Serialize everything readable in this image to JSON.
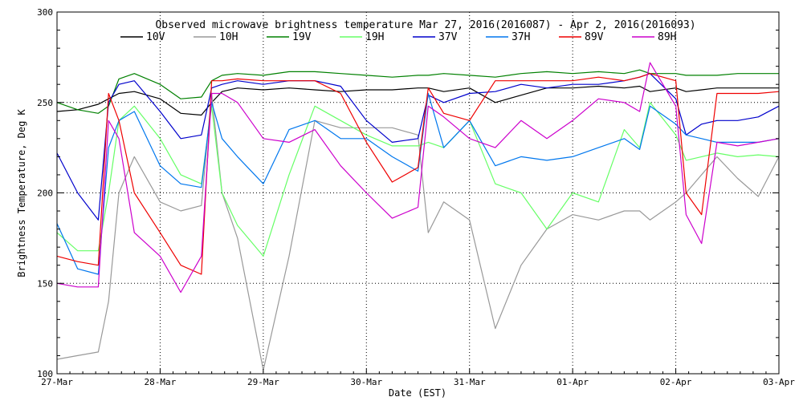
{
  "chart_data": {
    "type": "line",
    "title": "Observed microwave brightness temperature Mar 27, 2016(2016087) - Apr  2, 2016(2016093)",
    "xlabel": "Date (EST)",
    "ylabel": "Brightness Temperature, Deg K",
    "xlim": [
      0,
      7
    ],
    "ylim": [
      100,
      300
    ],
    "grid": true,
    "legend_position": "top",
    "x_ticks": [
      {
        "label": "27-Mar",
        "day": 0
      },
      {
        "label": "28-Mar",
        "day": 1
      },
      {
        "label": "29-Mar",
        "day": 2
      },
      {
        "label": "30-Mar",
        "day": 3
      },
      {
        "label": "31-Mar",
        "day": 4
      },
      {
        "label": "01-Apr",
        "day": 5
      },
      {
        "label": "02-Apr",
        "day": 6
      },
      {
        "label": "03-Apr",
        "day": 7
      }
    ],
    "y_ticks": [
      100,
      150,
      200,
      250,
      300
    ],
    "x": [
      0,
      0.2,
      0.4,
      0.5,
      0.6,
      0.75,
      1.0,
      1.2,
      1.4,
      1.5,
      1.6,
      1.75,
      2.0,
      2.25,
      2.5,
      2.75,
      3.0,
      3.25,
      3.5,
      3.6,
      3.75,
      4.0,
      4.25,
      4.5,
      4.75,
      5.0,
      5.25,
      5.5,
      5.65,
      5.75,
      6.0,
      6.1,
      6.25,
      6.4,
      6.6,
      6.8,
      7.0
    ],
    "series": [
      {
        "name": "10V",
        "color": "#000000",
        "values": [
          245,
          246,
          249,
          252,
          255,
          256,
          252,
          244,
          243,
          250,
          256,
          258,
          257,
          258,
          257,
          256,
          257,
          257,
          258,
          258,
          256,
          258,
          250,
          254,
          258,
          258,
          259,
          258,
          259,
          256,
          258,
          256,
          257,
          258,
          258,
          258,
          258
        ]
      },
      {
        "name": "10H",
        "color": "#999999",
        "values": [
          108,
          110,
          112,
          140,
          200,
          220,
          195,
          190,
          193,
          255,
          200,
          175,
          102,
          165,
          240,
          236,
          236,
          236,
          232,
          178,
          195,
          185,
          125,
          160,
          180,
          188,
          185,
          190,
          190,
          185,
          195,
          200,
          210,
          220,
          208,
          198,
          220
        ]
      },
      {
        "name": "19V",
        "color": "#008000",
        "values": [
          250,
          246,
          244,
          248,
          263,
          266,
          260,
          252,
          253,
          262,
          265,
          266,
          265,
          267,
          267,
          266,
          265,
          264,
          265,
          265,
          266,
          265,
          264,
          266,
          267,
          266,
          267,
          266,
          268,
          266,
          266,
          265,
          265,
          265,
          266,
          266,
          266
        ]
      },
      {
        "name": "19H",
        "color": "#66ff66",
        "values": [
          178,
          168,
          168,
          200,
          240,
          248,
          230,
          210,
          205,
          248,
          200,
          182,
          165,
          210,
          248,
          240,
          232,
          226,
          226,
          228,
          225,
          240,
          205,
          200,
          180,
          200,
          195,
          235,
          225,
          250,
          232,
          218,
          220,
          222,
          220,
          221,
          220
        ]
      },
      {
        "name": "37V",
        "color": "#0000cc",
        "values": [
          222,
          200,
          185,
          250,
          260,
          262,
          245,
          230,
          232,
          258,
          260,
          262,
          260,
          262,
          262,
          259,
          240,
          228,
          230,
          254,
          250,
          255,
          256,
          260,
          258,
          260,
          260,
          262,
          264,
          266,
          252,
          232,
          238,
          240,
          240,
          242,
          248
        ]
      },
      {
        "name": "37H",
        "color": "#0077ee",
        "values": [
          183,
          158,
          155,
          225,
          240,
          245,
          215,
          205,
          203,
          250,
          230,
          220,
          205,
          235,
          240,
          230,
          230,
          220,
          212,
          255,
          225,
          240,
          215,
          220,
          218,
          220,
          225,
          230,
          224,
          248,
          238,
          232,
          230,
          228,
          228,
          228,
          230
        ]
      },
      {
        "name": "89V",
        "color": "#ee0000",
        "values": [
          165,
          162,
          160,
          255,
          240,
          200,
          178,
          160,
          155,
          262,
          262,
          263,
          262,
          262,
          262,
          255,
          228,
          206,
          214,
          258,
          244,
          240,
          262,
          262,
          262,
          262,
          264,
          262,
          264,
          266,
          262,
          200,
          188,
          255,
          255,
          255,
          256
        ]
      },
      {
        "name": "89H",
        "color": "#cc00cc",
        "values": [
          150,
          148,
          148,
          240,
          230,
          178,
          165,
          145,
          165,
          255,
          255,
          250,
          230,
          228,
          235,
          215,
          200,
          186,
          192,
          248,
          242,
          230,
          225,
          240,
          230,
          240,
          252,
          250,
          245,
          272,
          248,
          188,
          172,
          228,
          226,
          228,
          230
        ]
      }
    ]
  }
}
